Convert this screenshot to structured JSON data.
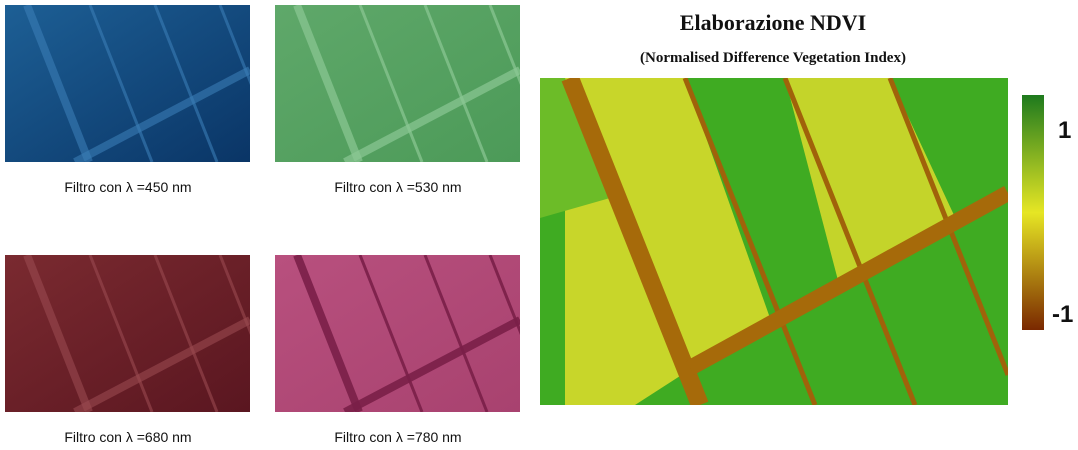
{
  "panels": [
    {
      "caption": "Filtro con λ =450 nm"
    },
    {
      "caption": "Filtro con λ =530 nm"
    },
    {
      "caption": "Filtro con λ =680 nm"
    },
    {
      "caption": "Filtro con λ =780 nm"
    }
  ],
  "ndvi": {
    "title": "Elaborazione NDVI",
    "subtitle": "(Normalised Difference Vegetation Index)",
    "colorbar": {
      "top_label": "1",
      "bottom_label": "-1"
    }
  }
}
